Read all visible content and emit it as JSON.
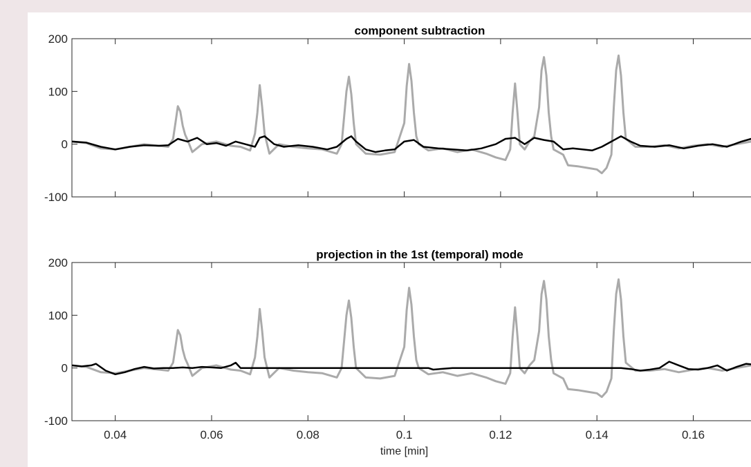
{
  "chart_data": [
    {
      "type": "line",
      "title": "component subtraction",
      "xlabel": "",
      "ylabel": "",
      "xlim": [
        0.031,
        0.174
      ],
      "ylim": [
        -100,
        200
      ],
      "yticks": [
        -100,
        0,
        100,
        200
      ],
      "ytick_labels": [
        "-100",
        "0",
        "100",
        "200"
      ],
      "xticks": [
        0.04,
        0.06,
        0.08,
        0.1,
        0.12,
        0.14,
        0.16
      ],
      "xtick_labels": [],
      "grid": false,
      "series": [
        {
          "color": "#aaaaaa",
          "x": [
            0.031,
            0.034,
            0.037,
            0.04,
            0.043,
            0.046,
            0.049,
            0.051,
            0.052,
            0.0525,
            0.053,
            0.0535,
            0.054,
            0.0545,
            0.055,
            0.056,
            0.058,
            0.061,
            0.064,
            0.066,
            0.068,
            0.069,
            0.0695,
            0.07,
            0.0705,
            0.071,
            0.072,
            0.074,
            0.077,
            0.08,
            0.083,
            0.086,
            0.087,
            0.0875,
            0.088,
            0.0885,
            0.089,
            0.0895,
            0.09,
            0.092,
            0.095,
            0.098,
            0.1,
            0.1005,
            0.101,
            0.1015,
            0.102,
            0.1025,
            0.103,
            0.105,
            0.108,
            0.111,
            0.114,
            0.117,
            0.119,
            0.121,
            0.122,
            0.1225,
            0.123,
            0.1235,
            0.124,
            0.125,
            0.126,
            0.127,
            0.128,
            0.1285,
            0.129,
            0.1295,
            0.13,
            0.1305,
            0.131,
            0.133,
            0.134,
            0.136,
            0.138,
            0.14,
            0.141,
            0.142,
            0.143,
            0.1435,
            0.144,
            0.1445,
            0.145,
            0.1455,
            0.146,
            0.148,
            0.151,
            0.154,
            0.157,
            0.16,
            0.163,
            0.166,
            0.169,
            0.172,
            0.174
          ],
          "y": [
            5,
            2,
            -8,
            -10,
            -5,
            0,
            -3,
            -5,
            10,
            40,
            72,
            62,
            35,
            18,
            8,
            -15,
            0,
            5,
            -3,
            -5,
            -12,
            20,
            60,
            112,
            70,
            20,
            -18,
            0,
            -5,
            -8,
            -10,
            -18,
            0,
            50,
            100,
            128,
            95,
            40,
            0,
            -18,
            -20,
            -15,
            40,
            110,
            152,
            120,
            60,
            15,
            0,
            -12,
            -8,
            -15,
            -10,
            -18,
            -25,
            -30,
            -10,
            60,
            115,
            60,
            0,
            -10,
            5,
            15,
            70,
            140,
            165,
            130,
            60,
            15,
            -10,
            -20,
            -40,
            -42,
            -45,
            -48,
            -55,
            -45,
            -20,
            70,
            140,
            168,
            130,
            60,
            10,
            -5,
            -5,
            -2,
            -8,
            -3,
            0,
            -5,
            0,
            5,
            2
          ]
        },
        {
          "color": "#000000",
          "x": [
            0.031,
            0.034,
            0.037,
            0.04,
            0.043,
            0.046,
            0.049,
            0.051,
            0.053,
            0.055,
            0.057,
            0.059,
            0.061,
            0.063,
            0.065,
            0.067,
            0.069,
            0.07,
            0.071,
            0.073,
            0.075,
            0.078,
            0.081,
            0.084,
            0.086,
            0.088,
            0.089,
            0.09,
            0.092,
            0.094,
            0.096,
            0.098,
            0.1,
            0.102,
            0.104,
            0.107,
            0.11,
            0.113,
            0.116,
            0.119,
            0.121,
            0.123,
            0.125,
            0.127,
            0.129,
            0.131,
            0.133,
            0.135,
            0.137,
            0.139,
            0.141,
            0.143,
            0.145,
            0.147,
            0.149,
            0.152,
            0.155,
            0.158,
            0.161,
            0.164,
            0.167,
            0.17,
            0.172,
            0.174
          ],
          "y": [
            5,
            3,
            -5,
            -10,
            -5,
            -2,
            -3,
            -2,
            10,
            5,
            12,
            0,
            2,
            -3,
            5,
            0,
            -5,
            12,
            15,
            0,
            -5,
            -2,
            -5,
            -10,
            -5,
            10,
            15,
            5,
            -10,
            -15,
            -12,
            -10,
            5,
            8,
            -5,
            -8,
            -10,
            -12,
            -8,
            0,
            10,
            12,
            0,
            12,
            8,
            5,
            -10,
            -8,
            -10,
            -12,
            -5,
            5,
            15,
            5,
            -3,
            -5,
            -2,
            -8,
            -3,
            0,
            -5,
            5,
            10,
            3
          ]
        }
      ]
    },
    {
      "type": "line",
      "title": "projection in the 1st (temporal) mode",
      "xlabel": "time [min]",
      "ylabel": "",
      "xlim": [
        0.031,
        0.174
      ],
      "ylim": [
        -100,
        200
      ],
      "yticks": [
        -100,
        0,
        100,
        200
      ],
      "ytick_labels": [
        "-100",
        "0",
        "100",
        "200"
      ],
      "xticks": [
        0.04,
        0.06,
        0.08,
        0.1,
        0.12,
        0.14,
        0.16
      ],
      "xtick_labels": [
        "0.04",
        "0.06",
        "0.08",
        "0.1",
        "0.12",
        "0.14",
        "0.16"
      ],
      "grid": false,
      "series": [
        {
          "color": "#aaaaaa",
          "x": [
            0.031,
            0.034,
            0.037,
            0.04,
            0.043,
            0.046,
            0.049,
            0.051,
            0.052,
            0.0525,
            0.053,
            0.0535,
            0.054,
            0.0545,
            0.055,
            0.056,
            0.058,
            0.061,
            0.064,
            0.066,
            0.068,
            0.069,
            0.0695,
            0.07,
            0.0705,
            0.071,
            0.072,
            0.074,
            0.077,
            0.08,
            0.083,
            0.086,
            0.087,
            0.0875,
            0.088,
            0.0885,
            0.089,
            0.0895,
            0.09,
            0.092,
            0.095,
            0.098,
            0.1,
            0.1005,
            0.101,
            0.1015,
            0.102,
            0.1025,
            0.103,
            0.105,
            0.108,
            0.111,
            0.114,
            0.117,
            0.119,
            0.121,
            0.122,
            0.1225,
            0.123,
            0.1235,
            0.124,
            0.125,
            0.126,
            0.127,
            0.128,
            0.1285,
            0.129,
            0.1295,
            0.13,
            0.1305,
            0.131,
            0.133,
            0.134,
            0.136,
            0.138,
            0.14,
            0.141,
            0.142,
            0.143,
            0.1435,
            0.144,
            0.1445,
            0.145,
            0.1455,
            0.146,
            0.148,
            0.151,
            0.154,
            0.157,
            0.16,
            0.163,
            0.166,
            0.169,
            0.172,
            0.174
          ],
          "y": [
            5,
            2,
            -8,
            -10,
            -5,
            0,
            -3,
            -5,
            10,
            40,
            72,
            62,
            35,
            18,
            8,
            -15,
            0,
            5,
            -3,
            -5,
            -12,
            20,
            60,
            112,
            70,
            20,
            -18,
            0,
            -5,
            -8,
            -10,
            -18,
            0,
            50,
            100,
            128,
            95,
            40,
            0,
            -18,
            -20,
            -15,
            40,
            110,
            152,
            120,
            60,
            15,
            0,
            -12,
            -8,
            -15,
            -10,
            -18,
            -25,
            -30,
            -10,
            60,
            115,
            60,
            0,
            -10,
            5,
            15,
            70,
            140,
            165,
            130,
            60,
            15,
            -10,
            -20,
            -40,
            -42,
            -45,
            -48,
            -55,
            -45,
            -20,
            70,
            140,
            168,
            130,
            60,
            10,
            -5,
            -5,
            -2,
            -8,
            -3,
            0,
            -5,
            0,
            5,
            2
          ]
        },
        {
          "color": "#000000",
          "x": [
            0.031,
            0.033,
            0.035,
            0.036,
            0.038,
            0.04,
            0.042,
            0.044,
            0.046,
            0.048,
            0.05,
            0.052,
            0.054,
            0.056,
            0.058,
            0.06,
            0.062,
            0.064,
            0.065,
            0.066,
            0.068,
            0.07,
            0.08,
            0.09,
            0.1,
            0.105,
            0.106,
            0.11,
            0.12,
            0.13,
            0.14,
            0.145,
            0.147,
            0.149,
            0.151,
            0.153,
            0.155,
            0.157,
            0.159,
            0.161,
            0.163,
            0.165,
            0.167,
            0.169,
            0.171,
            0.174
          ],
          "y": [
            5,
            3,
            5,
            8,
            -5,
            -12,
            -8,
            -2,
            2,
            -1,
            0,
            0,
            1,
            0,
            2,
            1,
            0,
            5,
            10,
            0,
            0,
            0,
            0,
            0,
            0,
            0,
            -3,
            0,
            0,
            0,
            0,
            0,
            -2,
            -5,
            -3,
            0,
            12,
            5,
            -2,
            -3,
            0,
            5,
            -5,
            2,
            8,
            5
          ]
        }
      ]
    }
  ]
}
